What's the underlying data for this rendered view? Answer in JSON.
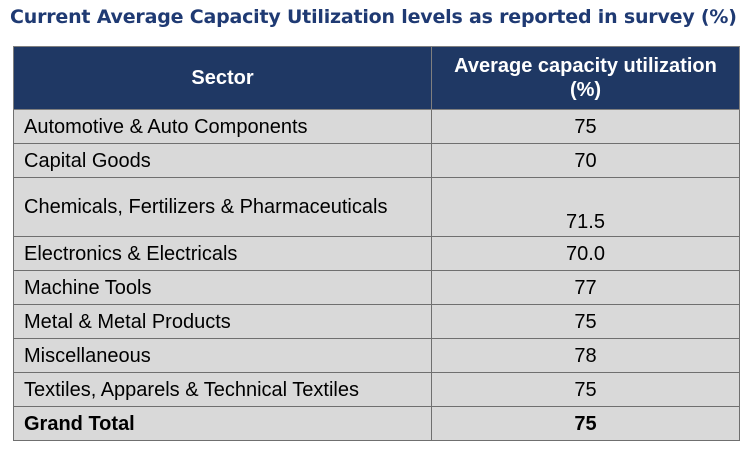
{
  "title": "Current Average Capacity Utilization levels as reported in survey (%)",
  "table": {
    "headers": {
      "sector": "Sector",
      "utilization": "Average capacity utilization (%)"
    },
    "rows": [
      {
        "sector": "Automotive & Auto Components",
        "value": "75"
      },
      {
        "sector": "Capital Goods",
        "value": "70"
      },
      {
        "sector": "Chemicals, Fertilizers & Pharmaceuticals",
        "value": "71.5"
      },
      {
        "sector": "Electronics & Electricals",
        "value": "70.0"
      },
      {
        "sector": "Machine Tools",
        "value": "77"
      },
      {
        "sector": "Metal & Metal Products",
        "value": "75"
      },
      {
        "sector": "Miscellaneous",
        "value": "78"
      },
      {
        "sector": "Textiles, Apparels & Technical Textiles",
        "value": "75"
      }
    ],
    "total": {
      "sector": "Grand Total",
      "value": "75"
    }
  },
  "colors": {
    "title": "#1f3a73",
    "header_bg": "#1f3864",
    "row_bg": "#d9d9d9"
  }
}
